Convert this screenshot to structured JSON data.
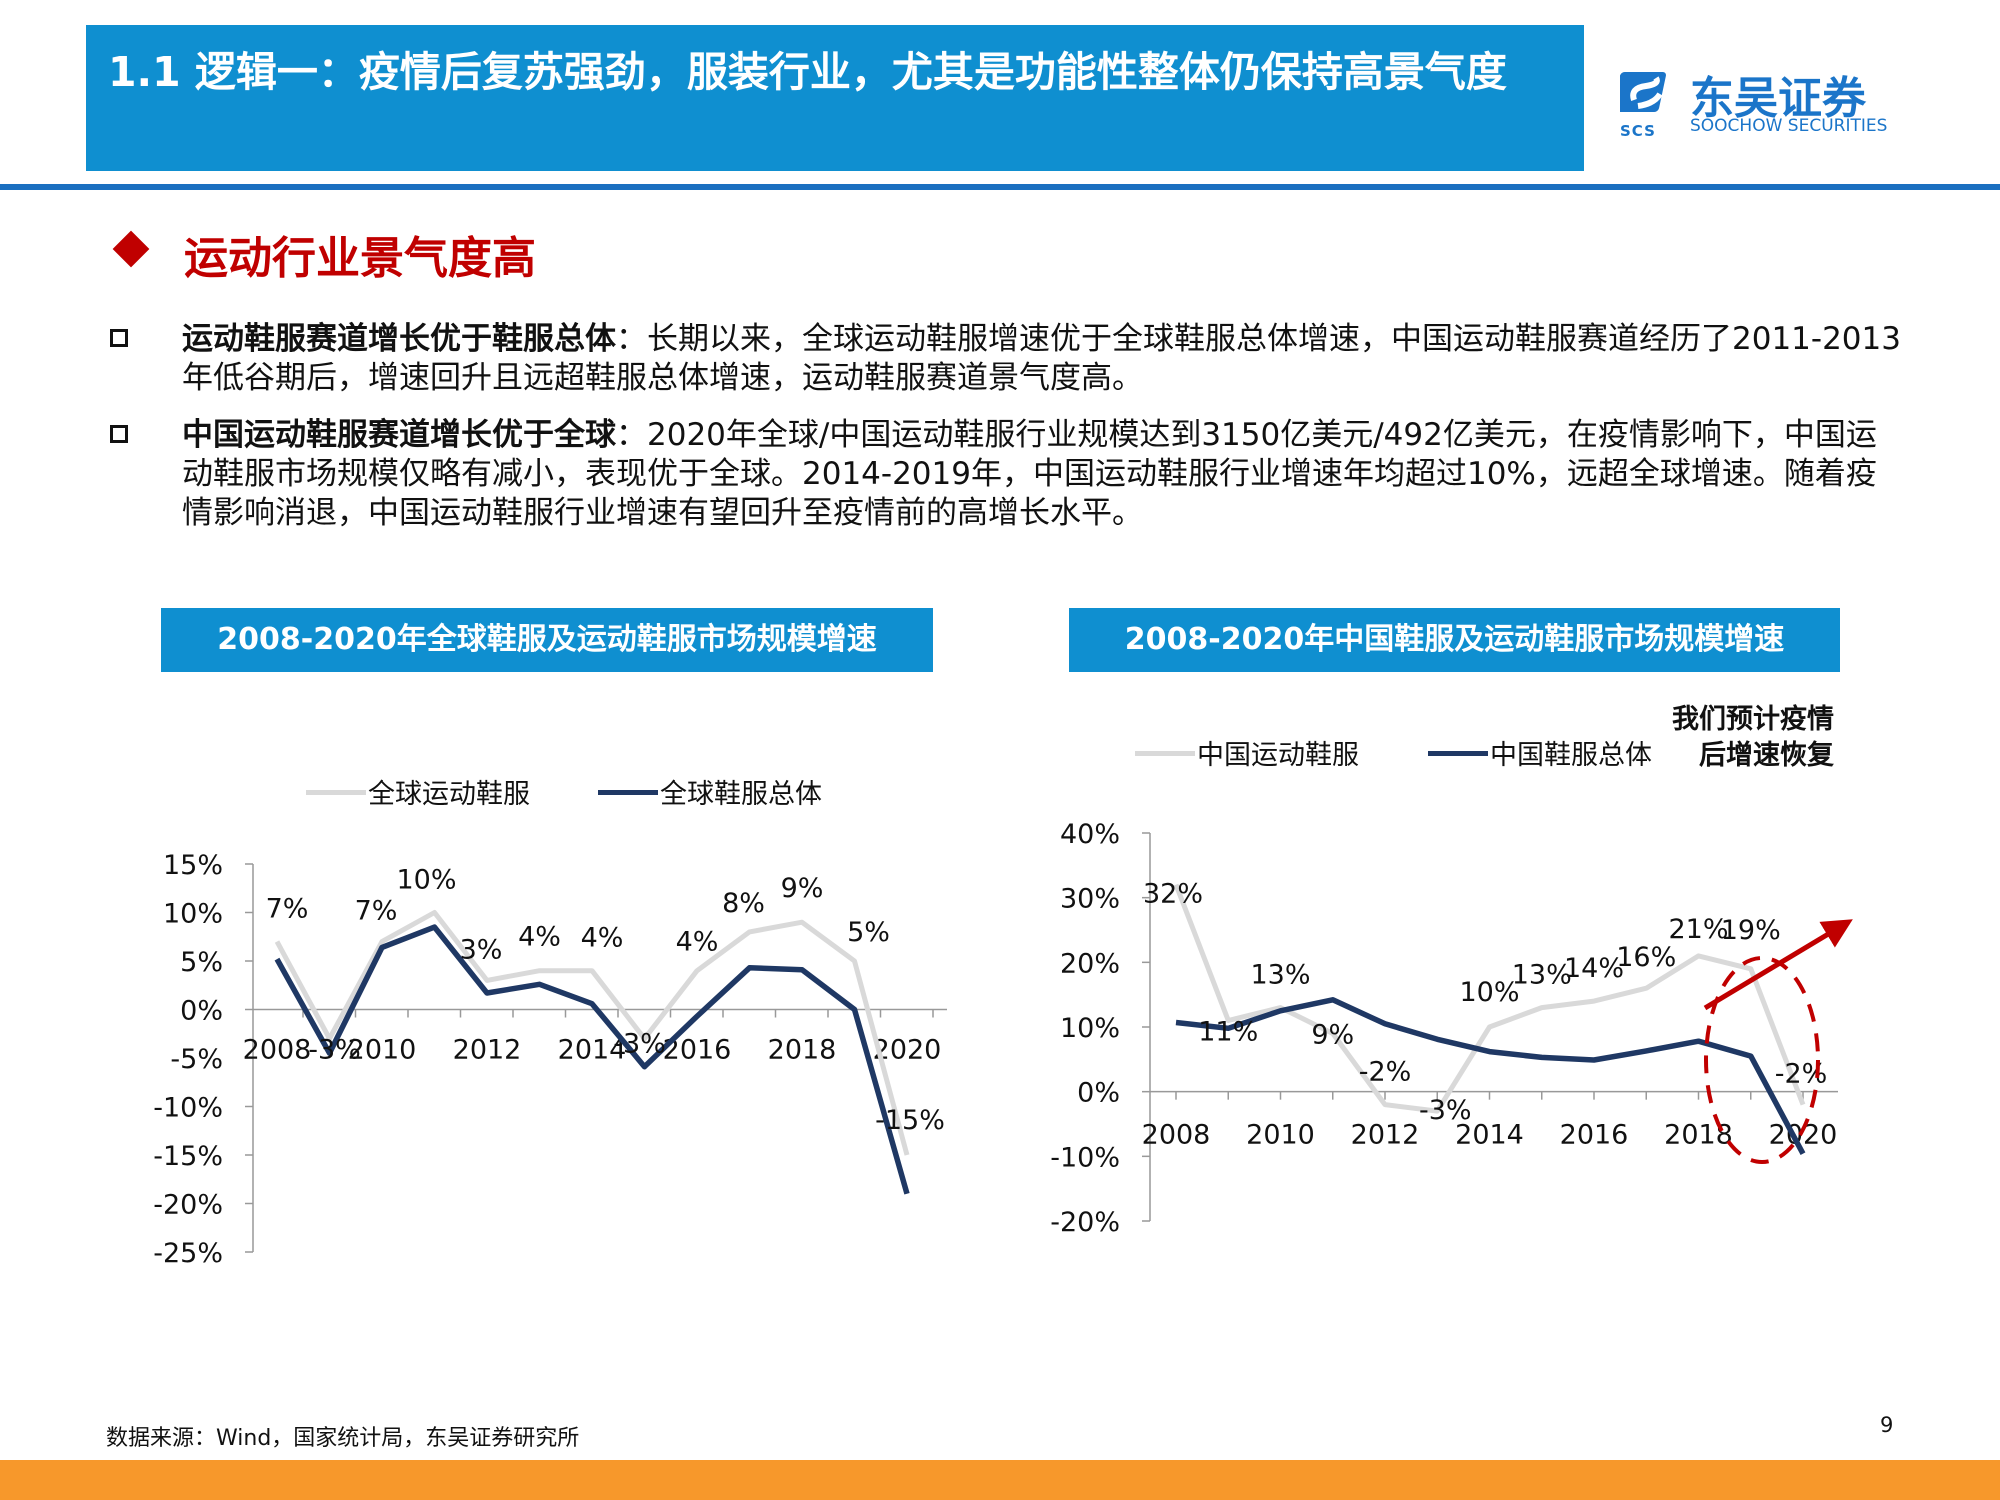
{
  "header": {
    "title": "1.1 逻辑一：疫情后复苏强劲，服装行业，尤其是功能性整体仍保持高景气度",
    "logo_cn": "东吴证券",
    "logo_en": "SOOCHOW SECURITIES",
    "logo_abbr": "SCS",
    "colors": {
      "banner": "#0f8fd0",
      "accent": "#c00000",
      "footer": "#f7982b"
    }
  },
  "section": {
    "title": "运动行业景气度高",
    "icon": "red-diamond-icon"
  },
  "bullets": [
    {
      "lead": "运动鞋服赛道增长优于鞋服总体",
      "text": "：长期以来，全球运动鞋服增速优于全球鞋服总体增速，中国运动鞋服赛道经历了2011-2013年低谷期后，增速回升且远超鞋服总体增速，运动鞋服赛道景气度高。"
    },
    {
      "lead": "中国运动鞋服赛道增长优于全球",
      "text": "：2020年全球/中国运动鞋服行业规模达到3150亿美元/492亿美元，在疫情影响下，中国运动鞋服市场规模仅略有减小，表现优于全球。2014-2019年，中国运动鞋服行业增速年均超过10%，远超全球增速。随着疫情影响消退，中国运动鞋服行业增速有望回升至疫情前的高增长水平。"
    }
  ],
  "chart_data": [
    {
      "type": "line",
      "title": "2008-2020年全球鞋服及运动鞋服市场规模增速",
      "x": [
        2008,
        2009,
        2010,
        2011,
        2012,
        2013,
        2014,
        2015,
        2016,
        2017,
        2018,
        2019,
        2020
      ],
      "x_ticks": [
        "2008",
        "2010",
        "2012",
        "2014",
        "2016",
        "2018",
        "2020"
      ],
      "y_ticks": [
        "15%",
        "10%",
        "5%",
        "0%",
        "-5%",
        "-10%",
        "-15%",
        "-20%",
        "-25%"
      ],
      "ylim": [
        -25,
        15
      ],
      "series": [
        {
          "name": "全球运动鞋服",
          "color": "#d9d9d9",
          "values": [
            7,
            -3,
            7,
            10,
            3,
            4,
            4,
            -3,
            4,
            8,
            9,
            5,
            -15
          ],
          "labels": [
            "7%",
            "-3%",
            "7%",
            "10%",
            "3%",
            "4%",
            "4%",
            "-3%",
            "4%",
            "8%",
            "9%",
            "5%",
            "-15%"
          ]
        },
        {
          "name": "全球鞋服总体",
          "color": "#1f3864",
          "values": [
            5.2,
            -4.5,
            6.4,
            8.5,
            1.7,
            2.6,
            0.6,
            -5.9,
            -0.7,
            4.3,
            4.1,
            0,
            -19
          ]
        }
      ],
      "legend": "top"
    },
    {
      "type": "line",
      "title": "2008-2020年中国鞋服及运动鞋服市场规模增速",
      "x": [
        2008,
        2009,
        2010,
        2011,
        2012,
        2013,
        2014,
        2015,
        2016,
        2017,
        2018,
        2019,
        2020
      ],
      "x_ticks": [
        "2008",
        "2010",
        "2012",
        "2014",
        "2016",
        "2018",
        "2020"
      ],
      "y_ticks": [
        "40%",
        "30%",
        "20%",
        "10%",
        "0%",
        "-10%",
        "-20%"
      ],
      "ylim": [
        -20,
        40
      ],
      "series": [
        {
          "name": "中国运动鞋服",
          "color": "#d9d9d9",
          "values": [
            32,
            11,
            13,
            9,
            -2,
            -3,
            10,
            13,
            14,
            16,
            21,
            19,
            -2
          ],
          "labels": [
            "32%",
            "11%",
            "13%",
            "9%",
            "-2%",
            "-3%",
            "10%",
            "13%",
            "14%",
            "16%",
            "21%",
            "19%",
            "-2%"
          ]
        },
        {
          "name": "中国鞋服总体",
          "color": "#1f3864",
          "values": [
            10.7,
            9.8,
            12.5,
            14.2,
            10.5,
            8.1,
            6.2,
            5.3,
            4.9,
            6.3,
            7.8,
            5.5,
            -9.6
          ]
        }
      ],
      "legend": "top",
      "annotation": "我们预计疫情后增速恢复"
    }
  ],
  "source": "数据来源：Wind，国家统计局，东吴证券研究所",
  "page_number": "9"
}
